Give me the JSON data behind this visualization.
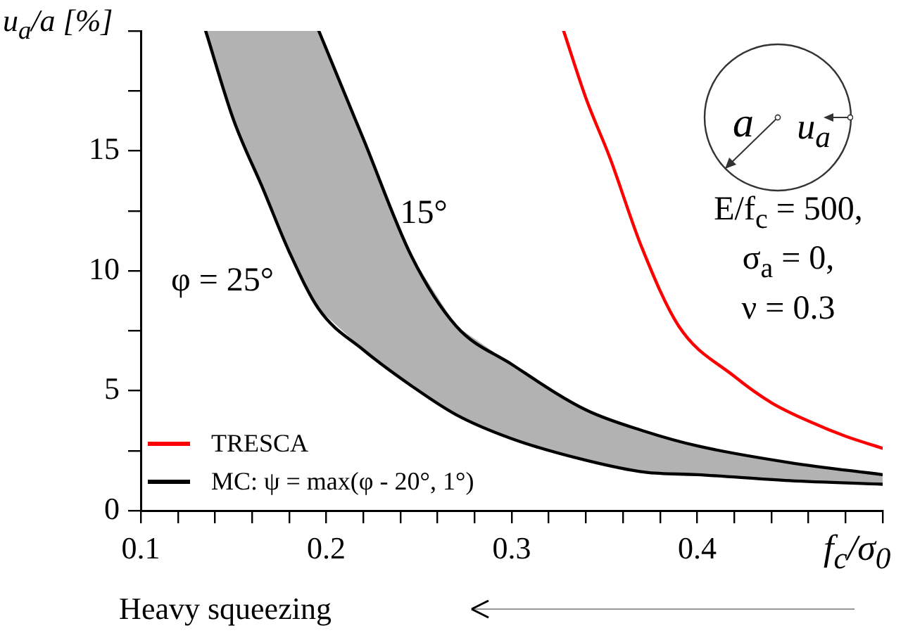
{
  "chart_data": {
    "type": "line",
    "xlabel": "f$_{c}$/σ$_{0}$",
    "ylabel": "u$_{a}$/a [%]",
    "xlim": [
      0.1,
      0.5
    ],
    "ylim": [
      0,
      20
    ],
    "xticks": [
      0.1,
      {
        "value": 0.12,
        "label": null
      },
      {
        "value": 0.14,
        "label": null
      },
      {
        "value": 0.16,
        "label": null
      },
      {
        "value": 0.18,
        "label": null
      },
      0.2,
      {
        "value": 0.22,
        "label": null
      },
      {
        "value": 0.24,
        "label": null
      },
      {
        "value": 0.26,
        "label": null
      },
      {
        "value": 0.28,
        "label": null
      },
      0.3,
      {
        "value": 0.32,
        "label": null
      },
      {
        "value": 0.34,
        "label": null
      },
      {
        "value": 0.36,
        "label": null
      },
      {
        "value": 0.38,
        "label": null
      },
      0.4,
      {
        "value": 0.42,
        "label": null
      },
      {
        "value": 0.44,
        "label": null
      },
      {
        "value": 0.46,
        "label": null
      },
      {
        "value": 0.48,
        "label": null
      },
      {
        "value": 0.5,
        "label": null
      }
    ],
    "yticks": [
      0,
      {
        "value": 2.5,
        "label": null
      },
      5,
      {
        "value": 7.5,
        "label": null
      },
      10,
      {
        "value": 12.5,
        "label": null
      },
      15,
      {
        "value": 17.5,
        "label": null
      },
      {
        "value": 20,
        "label": null
      }
    ],
    "grid": false,
    "legend": "bottom left",
    "marker": "none",
    "line_style": "solid",
    "series": [
      {
        "name": "TRESCA",
        "color": "#ff0000",
        "x": [
          0.328,
          0.34,
          0.353,
          0.37,
          0.39,
          0.42,
          0.44,
          0.461,
          0.48,
          0.5
        ],
        "values": [
          20,
          17.2,
          14.7,
          11.0,
          7.7,
          5.6,
          4.5,
          3.7,
          3.1,
          2.6
        ]
      },
      {
        "name": "MC: ψ = max(φ - 20°, 1°)",
        "color": "#000000",
        "x": [
          0.135,
          0.15,
          0.166,
          0.18,
          0.196,
          0.22,
          0.246,
          0.27,
          0.3,
          0.34,
          0.372,
          0.4,
          0.45,
          0.5
        ],
        "values": [
          20,
          16.3,
          13.4,
          10.8,
          8.4,
          6.7,
          5.2,
          4.0,
          3.0,
          2.1,
          1.6,
          1.5,
          1.25,
          1.1
        ],
        "lower": [
          20,
          16.3,
          13.4,
          10.8,
          8.4,
          6.7,
          5.2,
          4.0,
          3.0,
          2.1,
          1.6,
          1.5,
          1.25,
          1.1
        ],
        "upper": [
          20,
          20,
          20,
          20,
          20,
          15.5,
          10.6,
          7.7,
          6.1,
          4.2,
          3.3,
          2.7,
          2.0,
          1.5
        ]
      },
      {
        "color": "#000000",
        "x": [
          0.196,
          0.22,
          0.246,
          0.27,
          0.3,
          0.34,
          0.372,
          0.4,
          0.45,
          0.5
        ],
        "values": [
          20,
          15.5,
          10.6,
          7.7,
          6.1,
          4.2,
          3.3,
          2.7,
          2.0,
          1.5
        ]
      }
    ],
    "annotations": [
      "φ = 25°",
      "15°",
      "a",
      "u$_{a}$",
      "E/f$_{c}$ = 500,",
      "σ$_{a}$ = 0,",
      "ν = 0.3",
      "Heavy squeezing"
    ]
  }
}
